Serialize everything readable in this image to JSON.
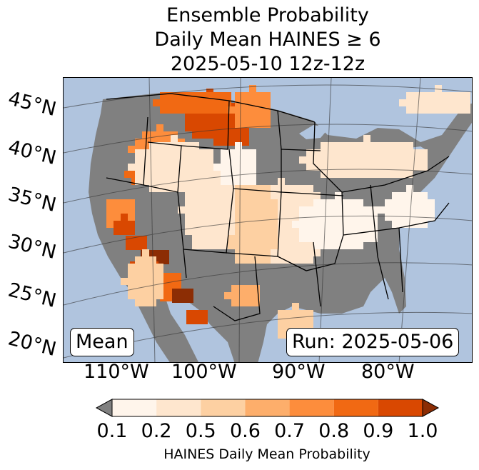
{
  "title": {
    "line1": "Ensemble Probability",
    "line2": "Daily Mean HAINES ≥ 6",
    "line3": "2025-05-10 12z-12z"
  },
  "map": {
    "lat_labels": [
      "45°N",
      "40°N",
      "35°N",
      "30°N",
      "25°N",
      "20°N"
    ],
    "lon_labels": [
      "110°W",
      "100°W",
      "90°W",
      "80°W"
    ],
    "stat_label": "Mean",
    "run_label": "Run: 2025-05-06",
    "ocean_color": "#b0c4de",
    "no_data_color": "#808080"
  },
  "colorbar": {
    "ticks": [
      "0.1",
      "0.2",
      "0.5",
      "0.6",
      "0.7",
      "0.8",
      "0.9",
      "1.0"
    ],
    "colors": [
      "#fff5eb",
      "#fee6ce",
      "#fdd0a2",
      "#fdae6b",
      "#fd8d3c",
      "#f16913",
      "#d94801",
      "#8c2d04"
    ],
    "under_color": "#808080",
    "label": "HAINES Daily Mean Probability"
  }
}
